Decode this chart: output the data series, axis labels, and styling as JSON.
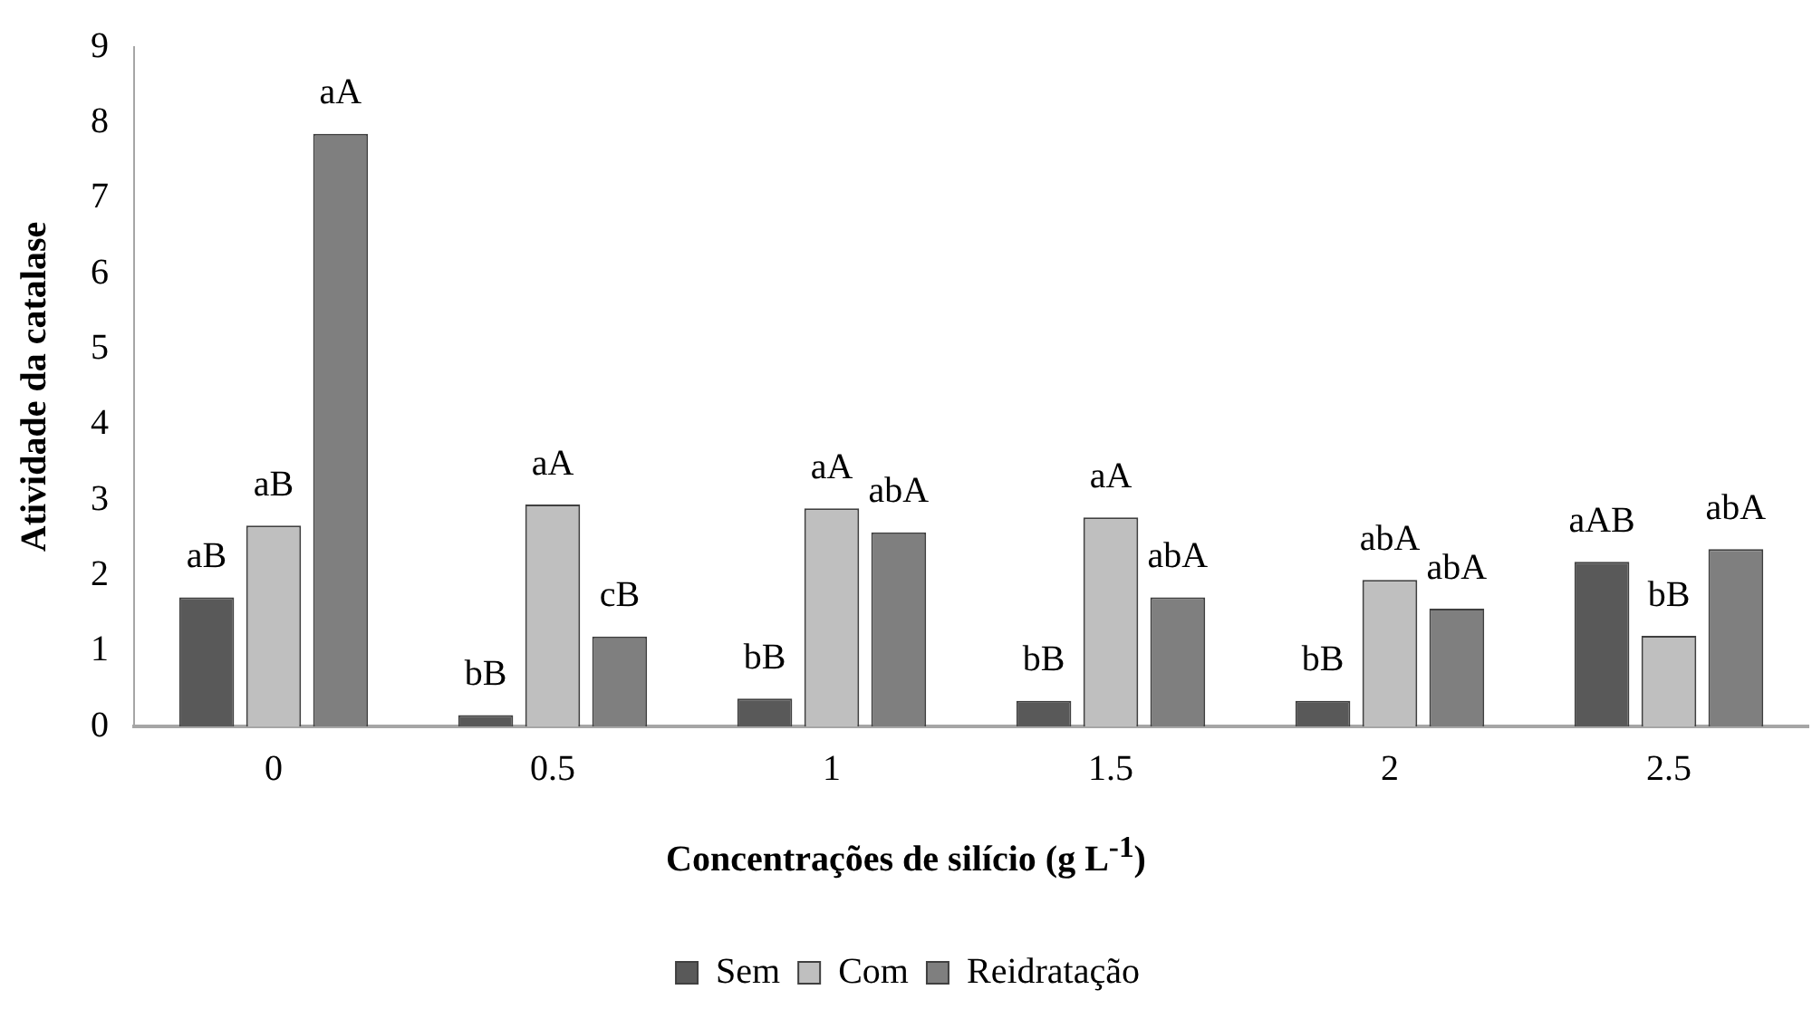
{
  "chart_data": {
    "type": "bar",
    "xlabel": "Concentrações de silício (g L$^{-1}$)",
    "ylabel": "Atividade da catalase",
    "categories": [
      "0",
      "0.5",
      "1",
      "1.5",
      "2",
      "2.5"
    ],
    "series": [
      {
        "name": "Sem",
        "color": "#595959",
        "values": [
          1.71,
          0.15,
          0.37,
          0.34,
          0.34,
          2.18
        ],
        "value_labels": [
          "aB",
          "bB",
          "bB",
          "bB",
          "bB",
          "aAB"
        ]
      },
      {
        "name": "Com",
        "color": "#bfbfbf",
        "values": [
          2.66,
          2.94,
          2.89,
          2.77,
          1.94,
          1.2
        ],
        "value_labels": [
          "aB",
          "aA",
          "aA",
          "aA",
          "abA",
          "bB"
        ]
      },
      {
        "name": "Reidratação",
        "color": "#7f7f7f",
        "values": [
          7.85,
          1.19,
          2.57,
          1.71,
          1.56,
          2.35
        ],
        "value_labels": [
          "aA",
          "cB",
          "abA",
          "abA",
          "abA",
          "abA"
        ]
      }
    ],
    "ylim": [
      0,
      9
    ],
    "yticks": [
      0,
      1,
      2,
      3,
      4,
      5,
      6,
      7,
      8,
      9
    ],
    "grid": false,
    "legend": "bottom"
  }
}
